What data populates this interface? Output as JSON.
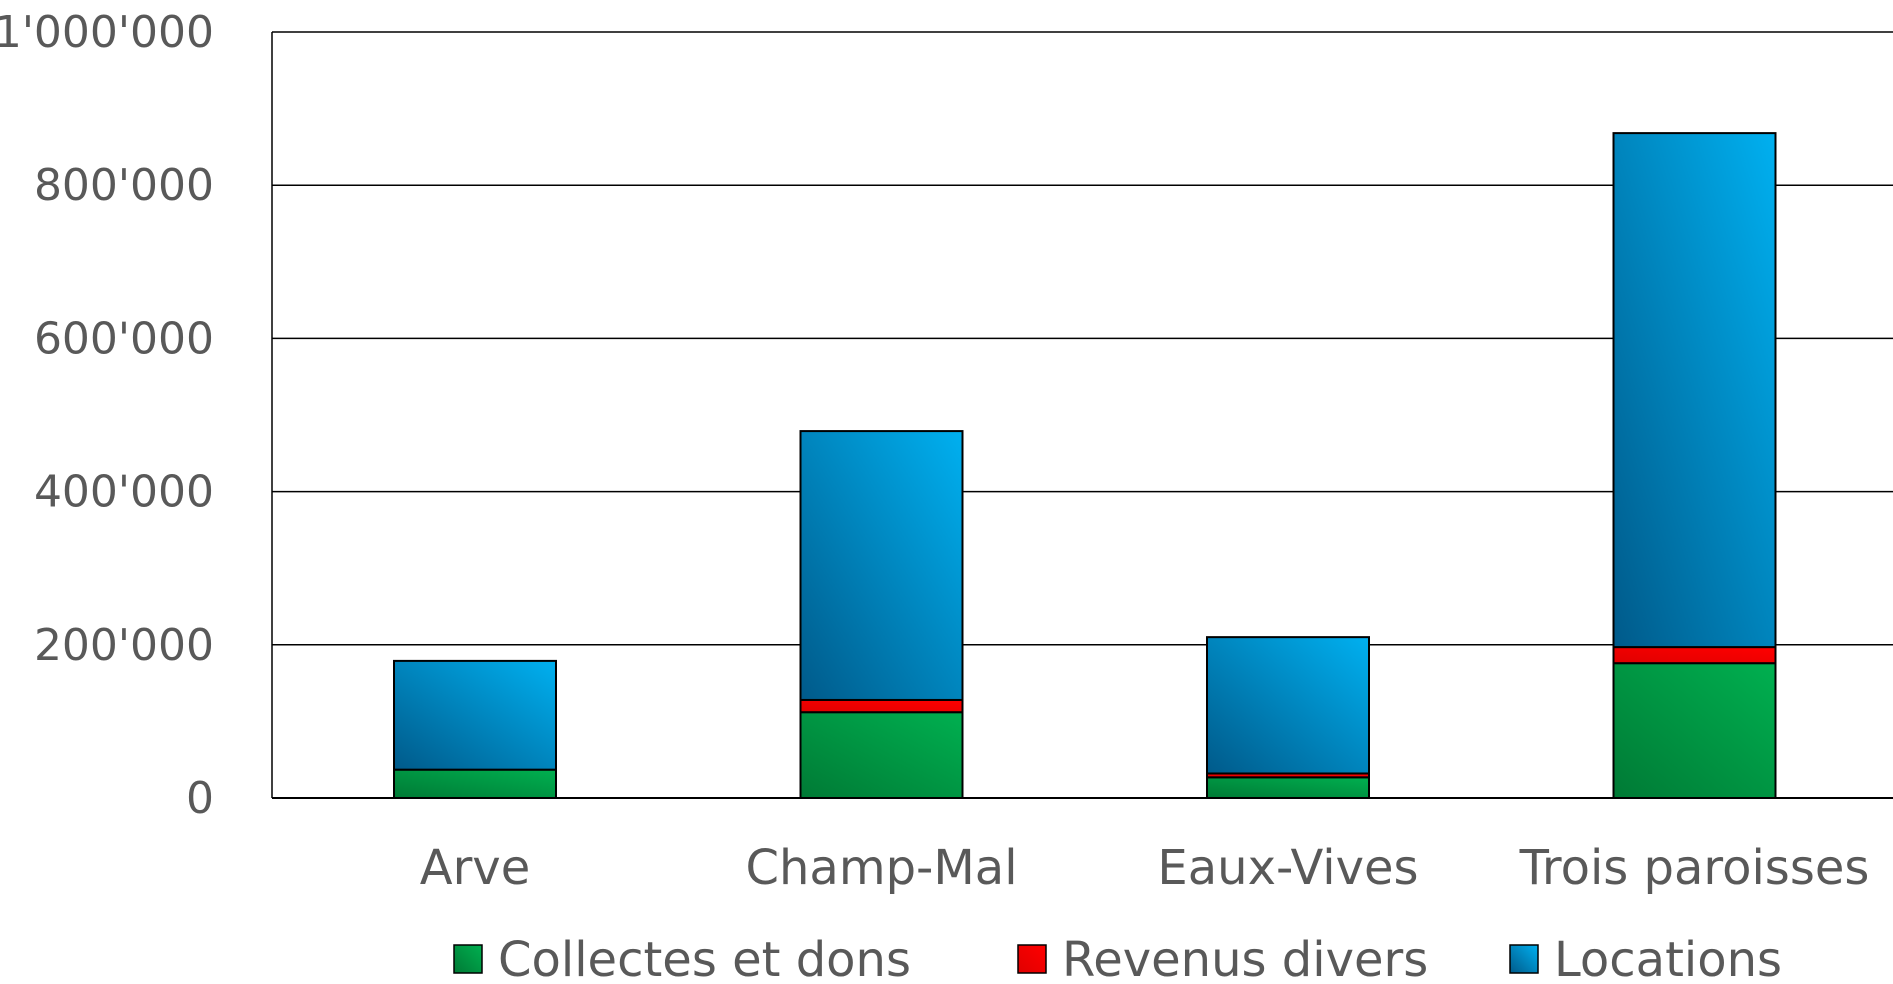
{
  "chart_data": {
    "type": "bar",
    "stacked": true,
    "categories": [
      "Arve",
      "Champ-Mal",
      "Eaux-Vives",
      "Trois paroisses"
    ],
    "series": [
      {
        "name": "Collectes et dons",
        "values": [
          37000,
          112000,
          27000,
          176000
        ],
        "color": "#00B050",
        "color_dark": "#007A35"
      },
      {
        "name": "Revenus divers",
        "values": [
          0,
          16000,
          5000,
          21000
        ],
        "color": "#FF0000",
        "color_dark": "#E00000"
      },
      {
        "name": "Locations",
        "values": [
          142000,
          351000,
          178000,
          671000
        ],
        "color": "#00B0F0",
        "color_dark": "#005A8A"
      }
    ],
    "ylim": [
      0,
      1000000
    ],
    "yticks": [
      0,
      200000,
      400000,
      600000,
      800000,
      1000000
    ],
    "ytick_labels": [
      "0",
      "200'000",
      "400'000",
      "600'000",
      "800'000",
      "1'000'000"
    ],
    "grid": true,
    "legend_position": "bottom"
  }
}
